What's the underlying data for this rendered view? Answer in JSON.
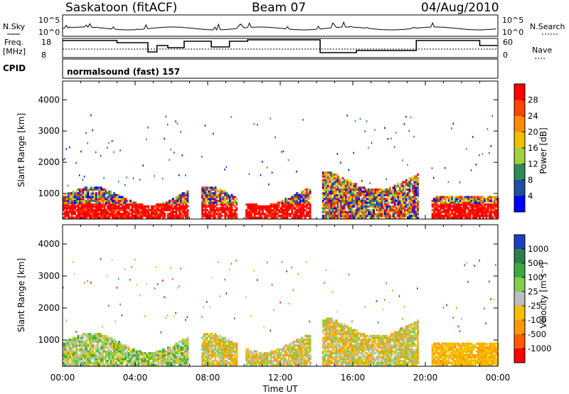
{
  "header": {
    "station": "Saskatoon (fitACF)",
    "beam": "Beam 07",
    "date": "04/Aug/2010"
  },
  "side_labels": {
    "nsky": "N.Sky",
    "freq_line1": "Freq.",
    "freq_line2": "[MHz]",
    "cpid": "CPID",
    "nsearch": "N.Search",
    "nave": "Nave"
  },
  "mode_label": "normalsound (fast) 157",
  "noise_axis": {
    "top": "10^5",
    "bottom": "10^0"
  },
  "freq_axis": {
    "left_ticks": [
      "18",
      "8"
    ],
    "right_ticks": [
      "60",
      "0"
    ]
  },
  "chart_data": [
    {
      "type": "heatmap",
      "panel": "power",
      "ylabel": "Slant Range [km]",
      "yticks": [
        1000,
        2000,
        3000,
        4000
      ],
      "ylim": [
        180,
        4600
      ],
      "xticks": [
        "00:00",
        "04:00",
        "08:00",
        "12:00",
        "16:00",
        "20:00",
        "00:00"
      ],
      "xlabel": "Time UT",
      "colorbar": {
        "label": "Power [dB]",
        "ticks": [
          "28",
          "24",
          "20",
          "16",
          "12",
          "8",
          "4"
        ],
        "colors": [
          "#ff0000",
          "#ff4400",
          "#ff8c00",
          "#f0c000",
          "#9fd040",
          "#2e8b57",
          "#1f4fa0",
          "#0000ff"
        ]
      },
      "data_gaps_hours": [
        [
          6.9,
          7.6
        ],
        [
          9.6,
          10.0
        ],
        [
          13.6,
          14.3
        ],
        [
          19.6,
          20.3
        ]
      ]
    },
    {
      "type": "heatmap",
      "panel": "velocity",
      "ylabel": "Slant Range [km]",
      "yticks": [
        1000,
        2000,
        3000,
        4000
      ],
      "ylim": [
        180,
        4600
      ],
      "xticks": [
        "00:00",
        "04:00",
        "08:00",
        "12:00",
        "16:00",
        "20:00",
        "00:00"
      ],
      "xlabel": "Time UT",
      "colorbar": {
        "label": "Velocity [m s⁻¹]",
        "ticks": [
          "1000",
          "500",
          "100",
          "25",
          "-25",
          "-100",
          "-500",
          "-1000"
        ],
        "colors": [
          "#1f3fbf",
          "#2e7d4f",
          "#3caa3c",
          "#7fd04a",
          "#bebebe",
          "#f5c000",
          "#ff9900",
          "#ff5a00",
          "#ff0000"
        ]
      },
      "data_gaps_hours": [
        [
          6.9,
          7.6
        ],
        [
          9.6,
          10.0
        ],
        [
          13.6,
          14.3
        ],
        [
          19.6,
          20.3
        ]
      ]
    }
  ]
}
